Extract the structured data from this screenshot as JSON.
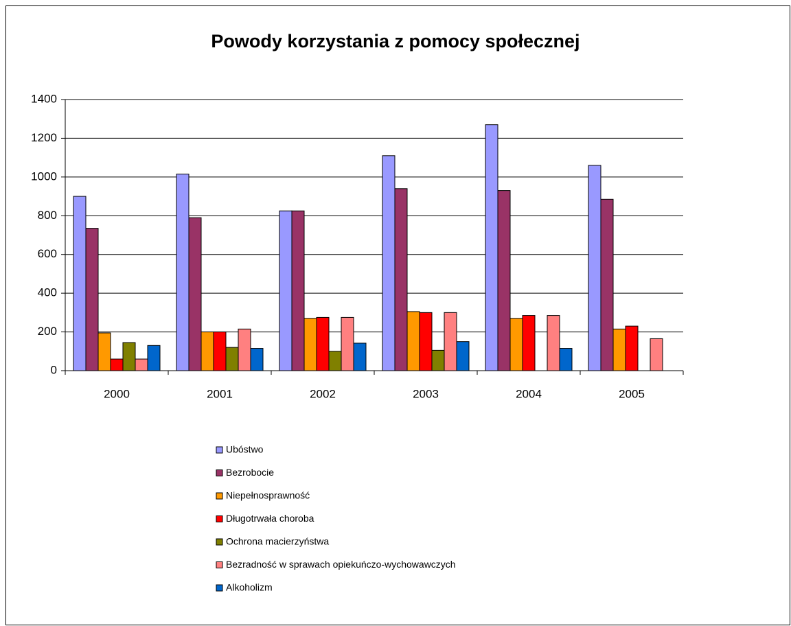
{
  "chart_data": {
    "type": "bar",
    "title": "Powody korzystania z pomocy społecznej",
    "categories": [
      "2000",
      "2001",
      "2002",
      "2003",
      "2004",
      "2005"
    ],
    "series": [
      {
        "name": "Ubóstwo",
        "color": "#9999ff",
        "values": [
          900,
          1015,
          825,
          1110,
          1270,
          1060
        ]
      },
      {
        "name": "Bezrobocie",
        "color": "#993366",
        "values": [
          735,
          790,
          825,
          940,
          930,
          885
        ]
      },
      {
        "name": "Niepełnosprawność",
        "color": "#ff9900",
        "values": [
          195,
          200,
          270,
          305,
          270,
          215
        ]
      },
      {
        "name": "Długotrwała choroba",
        "color": "#ff0000",
        "values": [
          60,
          200,
          275,
          300,
          285,
          230
        ]
      },
      {
        "name": "Ochrona macierzyństwa",
        "color": "#808000",
        "values": [
          145,
          120,
          100,
          105,
          null,
          null
        ]
      },
      {
        "name": "Bezradność w sprawach opiekuńczo-wychowawczych",
        "color": "#ff8080",
        "values": [
          60,
          215,
          275,
          300,
          285,
          165
        ]
      },
      {
        "name": "Alkoholizm",
        "color": "#0066cc",
        "values": [
          130,
          115,
          142,
          150,
          115,
          null
        ]
      }
    ],
    "ylim": [
      0,
      1400
    ],
    "yticks": [
      0,
      200,
      400,
      600,
      800,
      1000,
      1200,
      1400
    ],
    "grid": true,
    "legend": "bottom"
  }
}
